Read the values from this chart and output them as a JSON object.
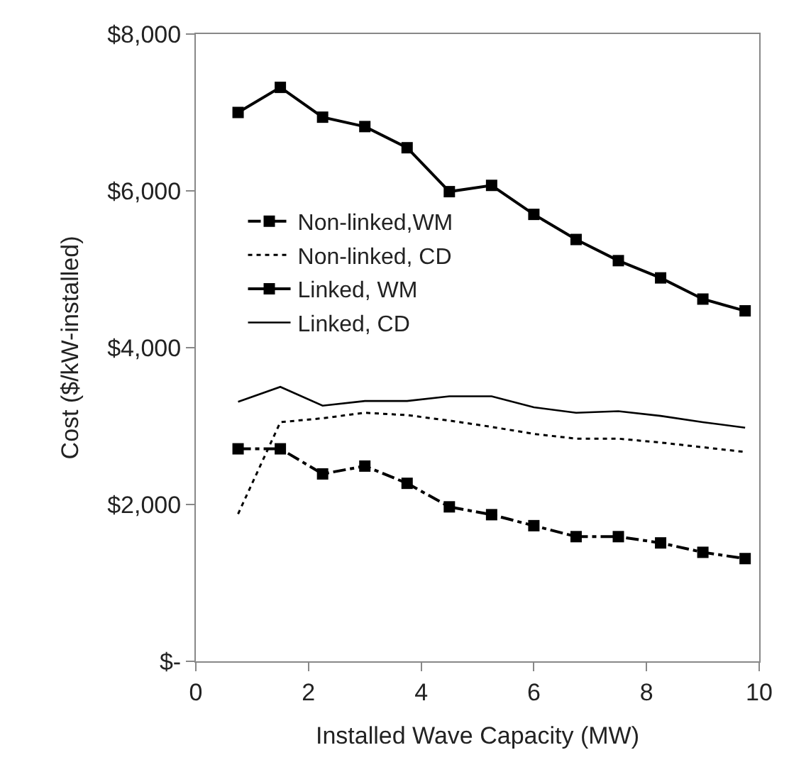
{
  "chart_data": {
    "type": "line",
    "xlabel": "Installed Wave Capacity (MW)",
    "ylabel": "Cost ($/kW-installed)",
    "x": [
      0.75,
      1.5,
      2.25,
      3,
      3.75,
      4.5,
      5.25,
      6,
      6.75,
      7.5,
      8.25,
      9,
      9.75
    ],
    "series": [
      {
        "name": "Non-linked,WM",
        "color": "#000000",
        "marker": "square",
        "line_style": "dashed",
        "values": [
          2710,
          2710,
          2390,
          2490,
          2270,
          1970,
          1870,
          1730,
          1590,
          1590,
          1510,
          1390,
          1310
        ]
      },
      {
        "name": "Non-linked, CD",
        "color": "#000000",
        "marker": "none",
        "line_style": "dotted",
        "values": [
          1880,
          3050,
          3100,
          3170,
          3140,
          3070,
          2990,
          2900,
          2840,
          2840,
          2790,
          2730,
          2670
        ]
      },
      {
        "name": "Linked, WM",
        "color": "#000000",
        "marker": "square",
        "line_style": "solid",
        "values": [
          7000,
          7320,
          6940,
          6820,
          6550,
          5990,
          6070,
          5700,
          5380,
          5110,
          4890,
          4620,
          4470
        ]
      },
      {
        "name": "Linked, CD",
        "color": "#000000",
        "marker": "none",
        "line_style": "solid",
        "values": [
          3310,
          3500,
          3260,
          3320,
          3320,
          3380,
          3380,
          3240,
          3170,
          3190,
          3130,
          3050,
          2980
        ]
      }
    ],
    "xlim": [
      0,
      10
    ],
    "xticks": [
      0,
      2,
      4,
      6,
      8,
      10
    ],
    "ylim": [
      0,
      8000
    ],
    "yticks": [
      {
        "value": 0,
        "label": "$-"
      },
      {
        "value": 2000,
        "label": "$2,000"
      },
      {
        "value": 4000,
        "label": "$4,000"
      },
      {
        "value": 6000,
        "label": "$6,000"
      },
      {
        "value": 8000,
        "label": "$8,000"
      }
    ],
    "legend": "center left"
  }
}
